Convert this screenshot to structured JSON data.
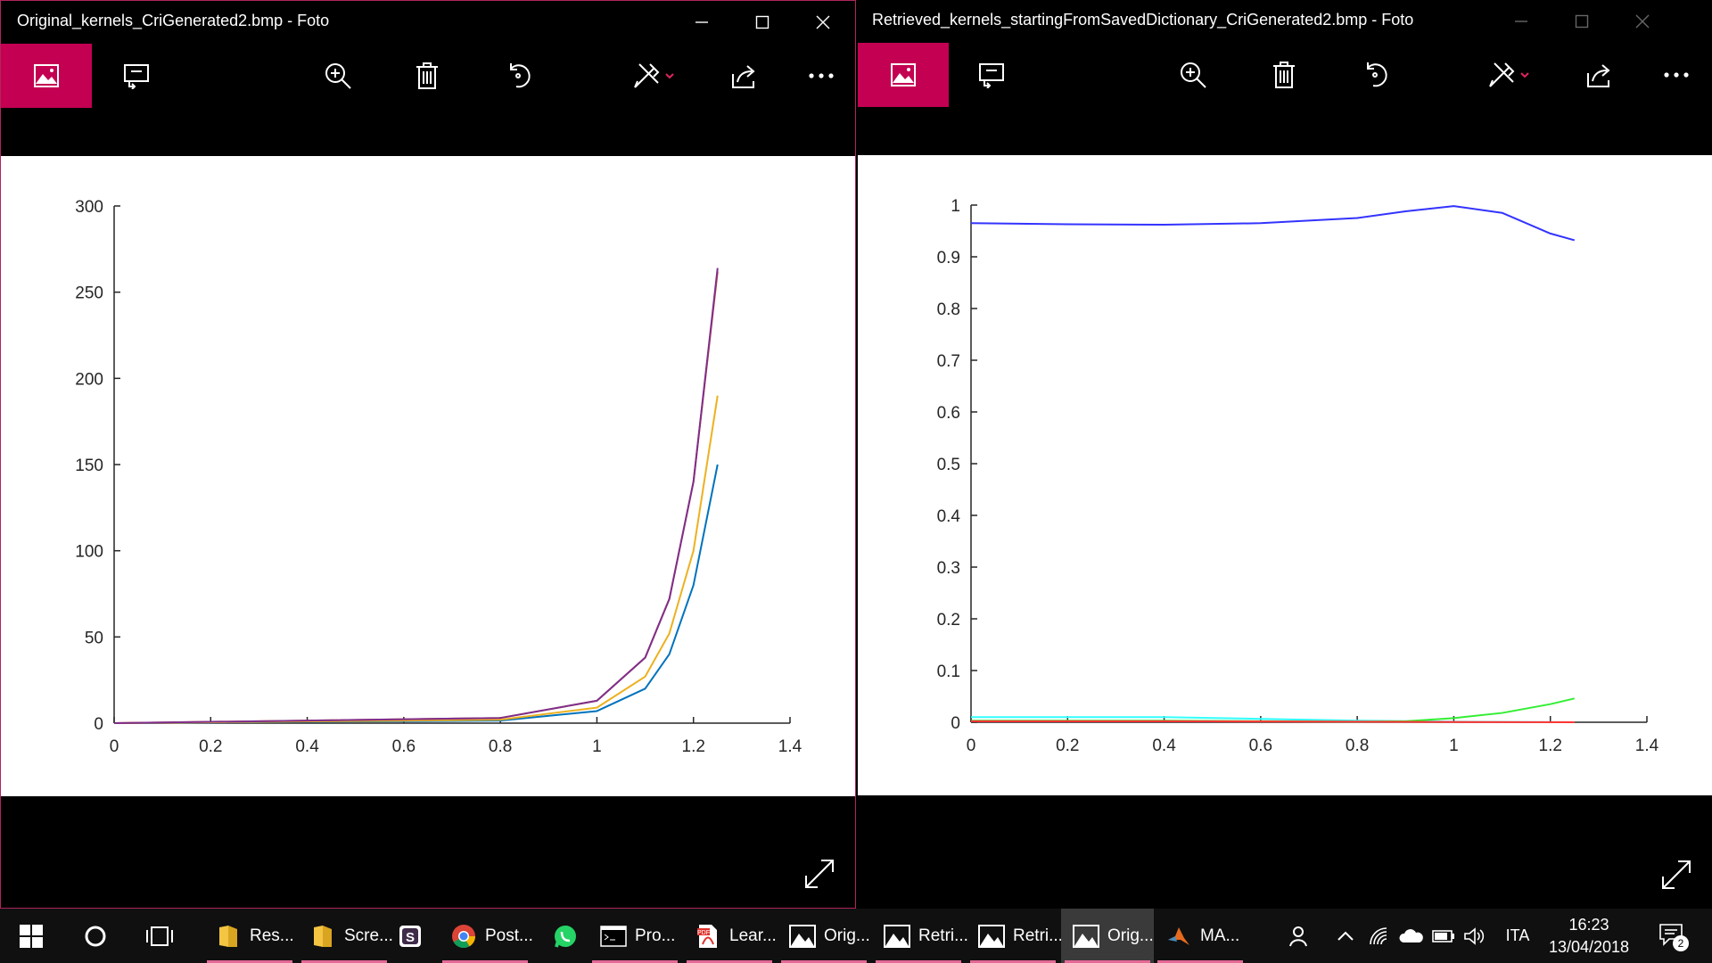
{
  "windows": [
    {
      "title": "Original_kernels_CriGenerated2.bmp - Foto",
      "controls": {
        "minimize": "minimize-icon",
        "maximize": "maximize-icon",
        "close": "close-icon"
      },
      "toolbar": [
        "photo-icon",
        "slideshow-icon",
        "zoom-in-icon",
        "delete-icon",
        "rotate-icon",
        "edit-icon",
        "share-icon",
        "more-icon"
      ],
      "expand_icon": "expand-icon"
    },
    {
      "title": "Retrieved_kernels_startingFromSavedDictionary_CriGenerated2.bmp - Foto",
      "controls": {
        "minimize": "minimize-icon",
        "maximize": "maximize-icon",
        "close": "close-icon"
      },
      "toolbar": [
        "photo-icon",
        "slideshow-icon",
        "zoom-in-icon",
        "delete-icon",
        "rotate-icon",
        "edit-icon",
        "share-icon",
        "more-icon"
      ],
      "expand_icon": "expand-icon"
    }
  ],
  "chart_data": [
    {
      "type": "line",
      "xlim": [
        0,
        1.4
      ],
      "ylim": [
        0,
        300
      ],
      "xticks": [
        "0",
        "0.2",
        "0.4",
        "0.6",
        "0.8",
        "1",
        "1.2",
        "1.4"
      ],
      "yticks": [
        "0",
        "50",
        "100",
        "150",
        "200",
        "250",
        "300"
      ],
      "grid": false,
      "series": [
        {
          "color": "#0072bd",
          "x": [
            0,
            0.8,
            1.0,
            1.1,
            1.15,
            1.2,
            1.25
          ],
          "y": [
            0,
            1.5,
            7,
            20,
            40,
            80,
            150
          ]
        },
        {
          "color": "#edb120",
          "x": [
            0,
            0.8,
            1.0,
            1.1,
            1.15,
            1.2,
            1.25
          ],
          "y": [
            0,
            2,
            9,
            27,
            52,
            100,
            190
          ]
        },
        {
          "color": "#d95319",
          "x": [
            0,
            0.8,
            1.0,
            1.1,
            1.15,
            1.2,
            1.25
          ],
          "y": [
            0,
            3,
            13,
            38,
            72,
            140,
            262
          ]
        },
        {
          "color": "#7e2f8e",
          "x": [
            0,
            0.8,
            1.0,
            1.1,
            1.15,
            1.2,
            1.25
          ],
          "y": [
            0,
            3,
            13,
            38,
            72,
            140,
            264
          ]
        }
      ]
    },
    {
      "type": "line",
      "xlim": [
        0,
        1.4
      ],
      "ylim": [
        0,
        1
      ],
      "xticks": [
        "0",
        "0.2",
        "0.4",
        "0.6",
        "0.8",
        "1",
        "1.2",
        "1.4"
      ],
      "yticks": [
        "0",
        "0.1",
        "0.2",
        "0.3",
        "0.4",
        "0.5",
        "0.6",
        "0.7",
        "0.8",
        "0.9",
        "1"
      ],
      "grid": false,
      "series": [
        {
          "color": "#3333ff",
          "x": [
            0,
            0.2,
            0.4,
            0.6,
            0.8,
            0.9,
            1.0,
            1.1,
            1.2,
            1.25
          ],
          "y": [
            0.965,
            0.963,
            0.962,
            0.965,
            0.975,
            0.988,
            0.998,
            0.985,
            0.945,
            0.932
          ]
        },
        {
          "color": "#33ffff",
          "x": [
            0,
            0.4,
            0.8,
            1.0,
            1.25
          ],
          "y": [
            0.01,
            0.01,
            0.003,
            0.001,
            0
          ]
        },
        {
          "color": "#33ee33",
          "x": [
            0,
            0.4,
            0.8,
            0.9,
            1.0,
            1.1,
            1.2,
            1.25
          ],
          "y": [
            0.003,
            0.003,
            0.001,
            0.002,
            0.008,
            0.018,
            0.035,
            0.046
          ]
        },
        {
          "color": "#ff3333",
          "x": [
            0,
            0.4,
            0.8,
            1.25
          ],
          "y": [
            0.002,
            0.002,
            0.001,
            0
          ]
        }
      ]
    }
  ],
  "taskbar": {
    "start_icon": "windows-start-icon",
    "cortana_icon": "cortana-icon",
    "taskview_icon": "task-view-icon",
    "apps": [
      {
        "label": "Res...",
        "icon": "folder-icon",
        "color": "#f4c542"
      },
      {
        "label": "Scre...",
        "icon": "folder-icon",
        "color": "#f4c542"
      },
      {
        "label": "",
        "icon": "slack-icon",
        "color": "#3f2b49"
      },
      {
        "label": "Post...",
        "icon": "chrome-icon",
        "color": "#4285f4"
      },
      {
        "label": "",
        "icon": "whatsapp-icon",
        "color": "#25d366"
      },
      {
        "label": "Pro...",
        "icon": "terminal-icon",
        "color": "#ffffff"
      },
      {
        "label": "Lear...",
        "icon": "pdf-icon",
        "color": "#e0322d"
      },
      {
        "label": "Orig...",
        "icon": "photo-icon",
        "color": "#ffffff"
      },
      {
        "label": "Retri...",
        "icon": "photo-icon",
        "color": "#ffffff"
      },
      {
        "label": "Retri...",
        "icon": "photo-icon",
        "color": "#ffffff"
      },
      {
        "label": "Orig...",
        "icon": "photo-icon",
        "color": "#ffffff"
      },
      {
        "label": "MA...",
        "icon": "matlab-icon",
        "color": "#e86a1e"
      }
    ],
    "tray": {
      "language": "ITA",
      "time": "16:23",
      "date": "13/04/2018",
      "notifications": "2"
    }
  }
}
